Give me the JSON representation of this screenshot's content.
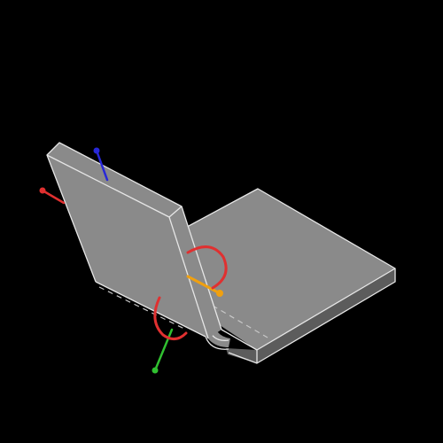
{
  "scene": {
    "background": "#000000",
    "face_color": "#8a8a8a",
    "edge_color": "#e6e6e6",
    "hidden_edge_color": "#c8c8c8",
    "shadow_color": "#5c5c5c"
  },
  "gizmo": {
    "x_axis_color": "#e03030",
    "y_axis_color": "#30c030",
    "z_axis_color": "#2828d8",
    "hinge_axis_color": "#f0a010",
    "rotation_arc_color": "#e03030"
  }
}
